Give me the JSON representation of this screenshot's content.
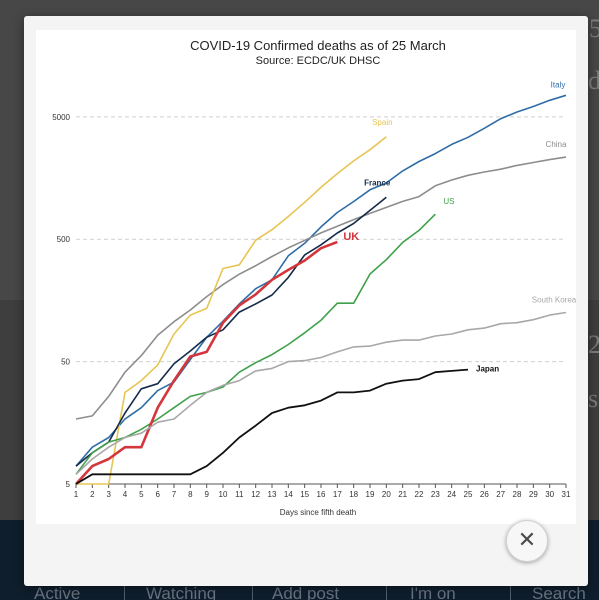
{
  "background": {
    "side_texts": [
      "5",
      "d",
      "2",
      "s"
    ],
    "nav_items": [
      "Active",
      "Watching",
      "Add post",
      "I'm on",
      "Search"
    ]
  },
  "lightbox": {
    "close_icon": "close-icon",
    "close_glyph": "✕"
  },
  "chart_data": {
    "type": "line",
    "title": "COVID-19 Confirmed deaths as of 25 March",
    "subtitle": "Source: ECDC/UK DHSC",
    "xlabel": "Days since fifth death",
    "ylabel": "",
    "xlim": [
      1,
      31
    ],
    "ylim": [
      5,
      10000
    ],
    "y_scale": "log",
    "x_ticks": [
      1,
      2,
      3,
      4,
      5,
      6,
      7,
      8,
      9,
      10,
      11,
      12,
      13,
      14,
      15,
      16,
      17,
      18,
      19,
      20,
      21,
      22,
      23,
      24,
      25,
      26,
      27,
      28,
      29,
      30,
      31
    ],
    "y_ticks": [
      5,
      50,
      500,
      5000
    ],
    "y_tick_labels": [
      "5",
      "50",
      "500",
      "5000"
    ],
    "grid": "horizontal dashed",
    "series": [
      {
        "name": "Italy",
        "color": "#2f6da6",
        "x": [
          1,
          2,
          3,
          4,
          5,
          6,
          7,
          8,
          9,
          10,
          11,
          12,
          13,
          14,
          15,
          16,
          17,
          18,
          19,
          20,
          21,
          22,
          23,
          24,
          25,
          26,
          27,
          28,
          29,
          30,
          31
        ],
        "y": [
          7,
          10,
          12,
          17,
          21,
          29,
          34,
          52,
          79,
          107,
          148,
          197,
          233,
          366,
          463,
          631,
          827,
          1016,
          1266,
          1441,
          1809,
          2158,
          2503,
          2978,
          3405,
          4032,
          4825,
          5476,
          6077,
          6820,
          7503
        ]
      },
      {
        "name": "China",
        "color": "#8d8d8d",
        "x": [
          1,
          2,
          3,
          4,
          5,
          6,
          7,
          8,
          9,
          10,
          11,
          12,
          13,
          14,
          15,
          16,
          17,
          18,
          19,
          20,
          21,
          22,
          23,
          24,
          25,
          26,
          27,
          28,
          29,
          30,
          31
        ],
        "y": [
          17,
          18,
          26,
          41,
          56,
          82,
          106,
          132,
          170,
          213,
          259,
          304,
          361,
          425,
          490,
          563,
          638,
          724,
          813,
          910,
          1018,
          1115,
          1367,
          1523,
          1665,
          1770,
          1868,
          2004,
          2118,
          2236,
          2345
        ]
      },
      {
        "name": "Spain",
        "color": "#e7c553",
        "x": [
          1,
          2,
          3,
          4,
          5,
          6,
          7,
          8,
          9,
          10,
          11,
          12,
          13,
          14,
          15,
          16,
          17,
          18,
          19,
          20
        ],
        "y": [
          5,
          5,
          5,
          28,
          35,
          47,
          84,
          120,
          136,
          288,
          309,
          491,
          598,
          767,
          1002,
          1326,
          1720,
          2182,
          2696,
          3434
        ]
      },
      {
        "name": "France",
        "color": "#152b49",
        "x": [
          1,
          2,
          3,
          4,
          5,
          6,
          7,
          8,
          9,
          10,
          11,
          12,
          13,
          14,
          15,
          16,
          17,
          18,
          19,
          20
        ],
        "y": [
          7,
          9,
          11,
          19,
          30,
          33,
          48,
          61,
          79,
          91,
          127,
          148,
          175,
          244,
          372,
          450,
          562,
          674,
          860,
          1100
        ]
      },
      {
        "name": "US",
        "color": "#3fa14a",
        "x": [
          1,
          2,
          3,
          4,
          5,
          6,
          7,
          8,
          9,
          10,
          11,
          12,
          13,
          14,
          15,
          16,
          17,
          18,
          19,
          20,
          21,
          22,
          23
        ],
        "y": [
          6,
          9,
          11,
          12,
          14,
          17,
          21,
          26,
          28,
          31,
          41,
          49,
          57,
          69,
          86,
          109,
          150,
          150,
          260,
          340,
          471,
          590,
          800
        ]
      },
      {
        "name": "UK",
        "color": "#d4363d",
        "x": [
          1,
          2,
          3,
          4,
          5,
          6,
          7,
          8,
          9,
          10,
          11,
          12,
          13,
          14,
          15,
          16,
          17
        ],
        "y": [
          5,
          7,
          8,
          10,
          10,
          21,
          35,
          55,
          60,
          104,
          144,
          177,
          233,
          281,
          335,
          422,
          475
        ]
      },
      {
        "name": "South Korea",
        "color": "#a8a8a8",
        "x": [
          1,
          2,
          3,
          4,
          5,
          6,
          7,
          8,
          9,
          10,
          11,
          12,
          13,
          14,
          15,
          16,
          17,
          18,
          19,
          20,
          21,
          22,
          23,
          24,
          25,
          26,
          27,
          28,
          29,
          30,
          31
        ],
        "y": [
          6,
          8,
          10,
          12,
          13,
          16,
          17,
          22,
          28,
          32,
          35,
          42,
          44,
          50,
          51,
          54,
          60,
          66,
          67,
          72,
          75,
          75,
          81,
          84,
          91,
          94,
          102,
          104,
          110,
          120,
          126
        ]
      },
      {
        "name": "Japan",
        "color": "#111111",
        "x": [
          1,
          2,
          3,
          4,
          5,
          6,
          7,
          8,
          9,
          10,
          11,
          12,
          13,
          14,
          15,
          16,
          17,
          18,
          19,
          20,
          21,
          22,
          23,
          24,
          25
        ],
        "y": [
          5,
          6,
          6,
          6,
          6,
          6,
          6,
          6,
          7,
          9,
          12,
          15,
          19,
          21,
          22,
          24,
          28,
          28,
          29,
          33,
          35,
          36,
          41,
          42,
          43
        ]
      }
    ]
  }
}
